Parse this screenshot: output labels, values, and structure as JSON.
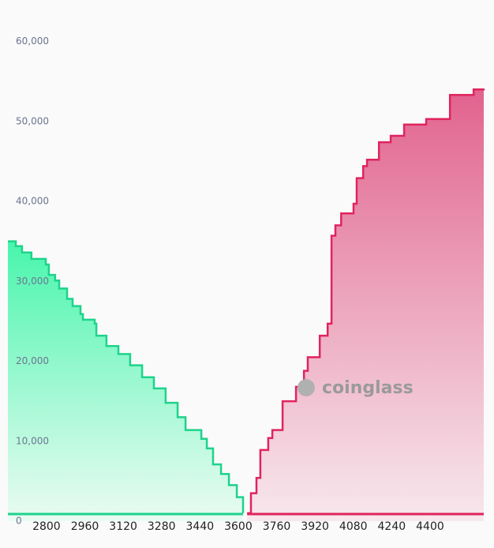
{
  "chart_data": {
    "type": "depth",
    "watermark": "coinglass",
    "xlim": [
      2639,
      4624
    ],
    "ylim": [
      0,
      64000
    ],
    "xticks": [
      2800,
      2960,
      3120,
      3280,
      3440,
      3600,
      3760,
      3920,
      4080,
      4240,
      4400
    ],
    "yticks": [
      0,
      {
        "value": 10000,
        "label": "10,000"
      },
      {
        "value": 20000,
        "label": "20,000"
      },
      {
        "value": 30000,
        "label": "30,000"
      },
      {
        "value": 40000,
        "label": "40,000"
      },
      {
        "value": 50000,
        "label": "50,000"
      },
      {
        "value": 60000,
        "label": "60,000"
      }
    ],
    "series": [
      {
        "side": "bid",
        "color": "#1dd38b",
        "x": [
          2639,
          2672,
          2698,
          2737,
          2797,
          2810,
          2836,
          2853,
          2886,
          2909,
          2942,
          2952,
          3001,
          3008,
          3050,
          3100,
          3149,
          3199,
          3248,
          3297,
          3347,
          3380,
          3446,
          3469,
          3495,
          3528,
          3561,
          3594,
          3620
        ],
        "values": [
          35000,
          34400,
          33600,
          32800,
          32100,
          30800,
          30100,
          29100,
          27800,
          26900,
          25900,
          25200,
          24700,
          23200,
          21900,
          20900,
          19500,
          18000,
          16600,
          14800,
          13000,
          11400,
          10300,
          9100,
          7100,
          5900,
          4500,
          3000,
          1000
        ]
      },
      {
        "side": "ask",
        "color": "#e0245e",
        "x": [
          3637,
          3653,
          3676,
          3692,
          3725,
          3742,
          3785,
          3841,
          3874,
          3890,
          3940,
          3973,
          3989,
          4005,
          4029,
          4081,
          4094,
          4121,
          4137,
          4187,
          4236,
          4292,
          4384,
          4483,
          4582,
          4624
        ],
        "values": [
          1000,
          3500,
          5400,
          8900,
          10400,
          11400,
          15000,
          16800,
          18800,
          20500,
          23200,
          24700,
          35700,
          37000,
          38500,
          39700,
          42900,
          44400,
          45200,
          47400,
          48200,
          49600,
          50300,
          53300,
          54000,
          54100
        ]
      }
    ]
  }
}
